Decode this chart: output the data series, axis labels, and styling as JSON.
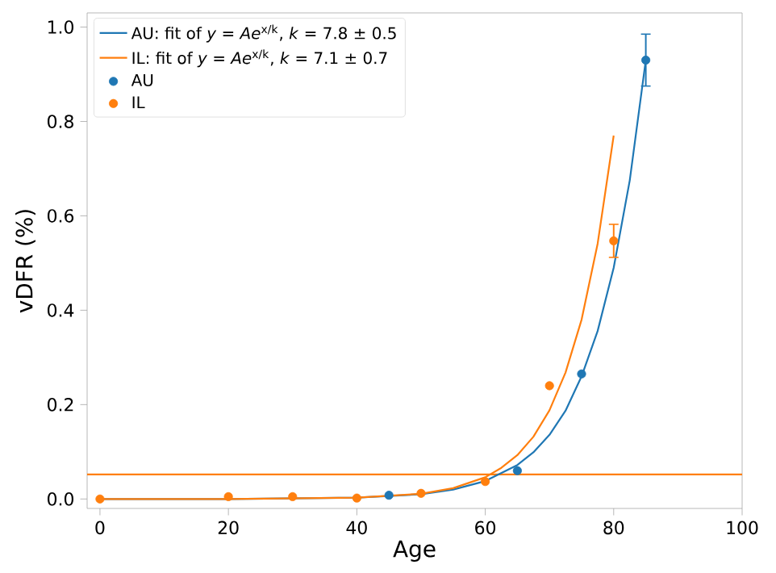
{
  "chart_data": {
    "type": "scatter",
    "xlabel": "Age",
    "ylabel": "vDFR (%)",
    "xlim": [
      -2,
      100
    ],
    "ylim": [
      -0.02,
      1.03
    ],
    "xticks": [
      0,
      20,
      40,
      60,
      80,
      100
    ],
    "yticks": [
      {
        "value": 0,
        "label": "0.0"
      },
      {
        "value": 0.2,
        "label": "0.2"
      },
      {
        "value": 0.4,
        "label": "0.4"
      },
      {
        "value": 0.6,
        "label": "0.6"
      },
      {
        "value": 0.8,
        "label": "0.8"
      },
      {
        "value": 1,
        "label": "1.0"
      }
    ],
    "grid": false,
    "legend": "top left",
    "series": [
      {
        "name": "AU: fit of *y* = *Ae*$^{x/k}$, *k* = 7.8 ± 0.5",
        "type": "line",
        "marker": "none",
        "color": "#1f77b4",
        "x": [
          0,
          20,
          40,
          50,
          55,
          60,
          65,
          67.5,
          70,
          72.5,
          75,
          77.5,
          80,
          82.5,
          85
        ],
        "values": [
          0,
          0,
          0.003,
          0.01,
          0.02,
          0.038,
          0.072,
          0.099,
          0.136,
          0.187,
          0.26,
          0.356,
          0.49,
          0.675,
          0.93
        ]
      },
      {
        "name": "IL: fit of *y* = *Ae*$^{x/k}$, *k* = 7.1 ± 0.7",
        "type": "line",
        "marker": "none",
        "color": "#ff7f0e",
        "x": [
          0,
          20,
          40,
          50,
          55,
          60,
          62.5,
          65,
          67.5,
          70,
          72.5,
          75,
          77.5,
          80
        ],
        "values": [
          0,
          0,
          0.003,
          0.011,
          0.023,
          0.046,
          0.066,
          0.093,
          0.132,
          0.188,
          0.268,
          0.38,
          0.541,
          0.77
        ]
      },
      {
        "name": "AU",
        "marker": "circle",
        "color": "#1f77b4",
        "x": [
          45,
          65,
          75,
          85
        ],
        "values": [
          0.008,
          0.06,
          0.265,
          0.93
        ],
        "errors": [
          null,
          null,
          null,
          0.055
        ]
      },
      {
        "name": "IL",
        "marker": "circle",
        "color": "#ff7f0e",
        "x": [
          0,
          20,
          30,
          40,
          50,
          60,
          70,
          80
        ],
        "values": [
          0,
          0.005,
          0.005,
          0.002,
          0.012,
          0.037,
          0.24,
          0.547
        ],
        "errors": [
          null,
          null,
          null,
          null,
          null,
          null,
          null,
          0.035
        ]
      }
    ],
    "ref_lines": [
      {
        "axis": "y",
        "value": 0.052,
        "color": "#ff7f0e"
      }
    ]
  }
}
